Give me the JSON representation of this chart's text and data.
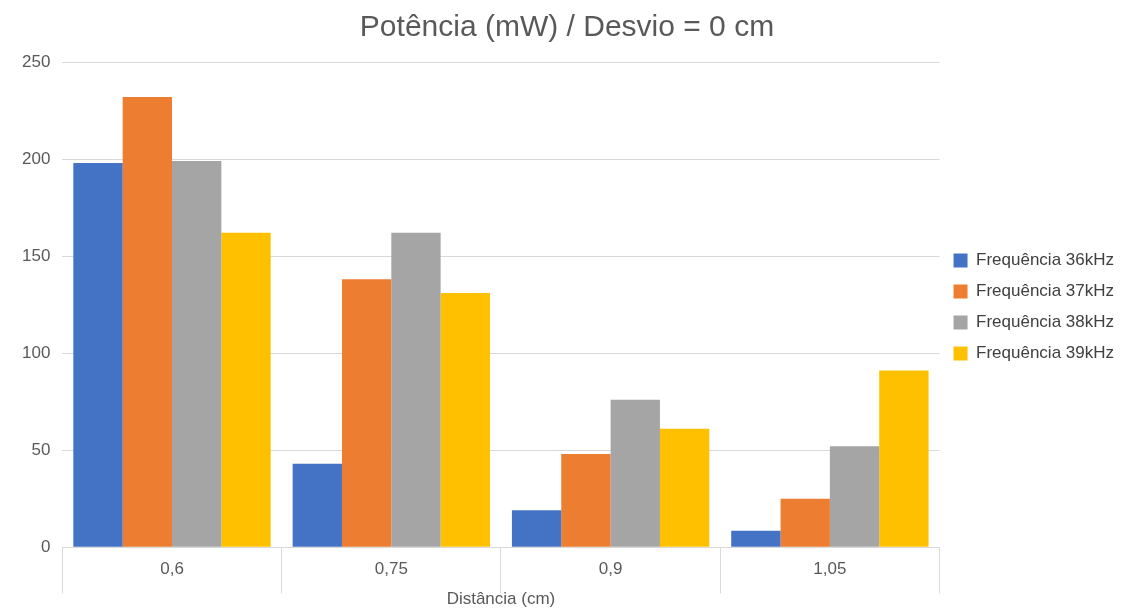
{
  "chart_data": {
    "type": "bar",
    "title": "Potência (mW) / Desvio = 0 cm",
    "xlabel": "Distância (cm)",
    "categories": [
      "0,6",
      "0,75",
      "0,9",
      "1,05"
    ],
    "series": [
      {
        "name": "Frequência 36kHz",
        "color": "#4472c4",
        "values": [
          198,
          43,
          19,
          8.5
        ]
      },
      {
        "name": "Frequência 37kHz",
        "color": "#ed7d31",
        "values": [
          232,
          138,
          48,
          25
        ]
      },
      {
        "name": "Frequência 38kHz",
        "color": "#a5a5a5",
        "values": [
          199,
          162,
          76,
          52
        ]
      },
      {
        "name": "Frequência 39kHz",
        "color": "#ffc000",
        "values": [
          162,
          131,
          61,
          91
        ]
      }
    ],
    "ylim": [
      0,
      250
    ],
    "yticks": [
      0,
      50,
      100,
      150,
      200,
      250
    ],
    "grid": "y",
    "legend": "right"
  }
}
